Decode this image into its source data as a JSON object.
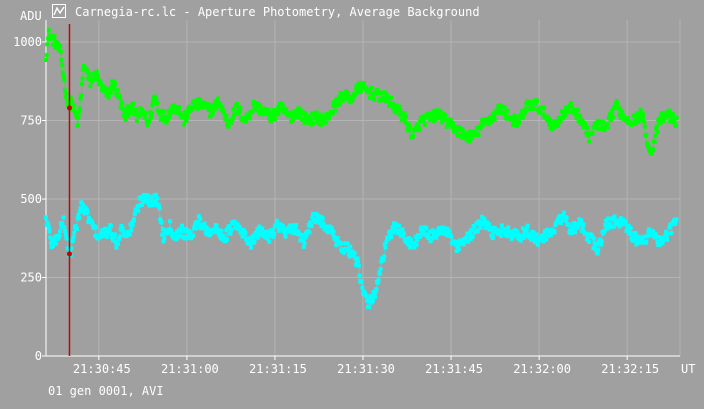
{
  "window": {
    "title": "Carnegia-rc.lc - Aperture Photometry, Average Background",
    "footer": "01 gen 0001, AVI"
  },
  "colors": {
    "background": "#a0a0a0",
    "grid": "#b4b4b4",
    "axis": "#ffffff",
    "series_green": "#00ff00",
    "series_cyan": "#00ffff",
    "cursor": "#cc0000"
  },
  "icons": {
    "window_icon": "chart-app-icon"
  },
  "chart_data": {
    "type": "scatter",
    "ylabel": "ADU",
    "xlabel": "UT",
    "ylim": [
      0,
      1000
    ],
    "yticks": [
      0,
      250,
      500,
      750,
      1000
    ],
    "ytick_labels": [
      "0",
      "250",
      "500",
      "750",
      "1000"
    ],
    "xlim_seconds": [
      37836,
      37944
    ],
    "xticks_seconds": [
      37845,
      37860,
      37875,
      37890,
      37905,
      37920,
      37935
    ],
    "xtick_labels": [
      "21:30:45",
      "21:31:00",
      "21:31:15",
      "21:31:30",
      "21:31:45",
      "21:32:00",
      "21:32:15"
    ],
    "cursor_x_seconds": 37840,
    "cursor_values": [
      790,
      325
    ],
    "series": [
      {
        "color": "#00ff00",
        "anchors": [
          [
            37836.0,
            960
          ],
          [
            37836.5,
            1025
          ],
          [
            37837.5,
            1000
          ],
          [
            37838.5,
            965
          ],
          [
            37839.5,
            820
          ],
          [
            37840.5,
            800
          ],
          [
            37841.5,
            740
          ],
          [
            37842.5,
            930
          ],
          [
            37843.5,
            870
          ],
          [
            37844.5,
            900
          ],
          [
            37845.5,
            850
          ],
          [
            37846.5,
            830
          ],
          [
            37847.5,
            870
          ],
          [
            37848.5,
            820
          ],
          [
            37849.5,
            760
          ],
          [
            37850.5,
            800
          ],
          [
            37851.5,
            760
          ],
          [
            37852.5,
            780
          ],
          [
            37853.5,
            740
          ],
          [
            37854.5,
            830
          ],
          [
            37855.5,
            770
          ],
          [
            37856.5,
            760
          ],
          [
            37857.5,
            790
          ],
          [
            37858.5,
            790
          ],
          [
            37859.5,
            750
          ],
          [
            37861.0,
            800
          ],
          [
            37862.5,
            800
          ],
          [
            37864.0,
            780
          ],
          [
            37865.5,
            810
          ],
          [
            37867.0,
            740
          ],
          [
            37868.5,
            790
          ],
          [
            37870.0,
            750
          ],
          [
            37871.5,
            800
          ],
          [
            37873.0,
            780
          ],
          [
            37874.5,
            760
          ],
          [
            37876.0,
            790
          ],
          [
            37877.5,
            760
          ],
          [
            37879.0,
            780
          ],
          [
            37880.5,
            750
          ],
          [
            37882.0,
            760
          ],
          [
            37883.5,
            750
          ],
          [
            37885.0,
            790
          ],
          [
            37886.5,
            830
          ],
          [
            37888.0,
            820
          ],
          [
            37889.5,
            860
          ],
          [
            37891.0,
            840
          ],
          [
            37892.5,
            830
          ],
          [
            37894.0,
            820
          ],
          [
            37895.5,
            790
          ],
          [
            37897.0,
            760
          ],
          [
            37898.5,
            700
          ],
          [
            37900.0,
            750
          ],
          [
            37901.5,
            760
          ],
          [
            37903.0,
            770
          ],
          [
            37904.5,
            740
          ],
          [
            37906.0,
            720
          ],
          [
            37907.5,
            700
          ],
          [
            37909.0,
            700
          ],
          [
            37910.5,
            740
          ],
          [
            37912.0,
            760
          ],
          [
            37913.5,
            790
          ],
          [
            37915.0,
            760
          ],
          [
            37916.5,
            740
          ],
          [
            37918.0,
            800
          ],
          [
            37919.5,
            800
          ],
          [
            37921.0,
            770
          ],
          [
            37922.5,
            730
          ],
          [
            37924.0,
            770
          ],
          [
            37925.5,
            790
          ],
          [
            37927.0,
            760
          ],
          [
            37928.5,
            700
          ],
          [
            37930.0,
            740
          ],
          [
            37931.5,
            720
          ],
          [
            37933.0,
            800
          ],
          [
            37934.5,
            760
          ],
          [
            37936.0,
            750
          ],
          [
            37937.5,
            770
          ],
          [
            37939.0,
            640
          ],
          [
            37940.5,
            750
          ],
          [
            37942.0,
            770
          ],
          [
            37943.5,
            740
          ]
        ]
      },
      {
        "color": "#00ffff",
        "anchors": [
          [
            37836.0,
            440
          ],
          [
            37837.0,
            355
          ],
          [
            37838.0,
            380
          ],
          [
            37839.0,
            430
          ],
          [
            37840.0,
            320
          ],
          [
            37841.0,
            400
          ],
          [
            37842.0,
            480
          ],
          [
            37843.0,
            450
          ],
          [
            37844.0,
            410
          ],
          [
            37845.0,
            380
          ],
          [
            37846.0,
            390
          ],
          [
            37847.0,
            400
          ],
          [
            37848.0,
            360
          ],
          [
            37849.0,
            410
          ],
          [
            37850.0,
            380
          ],
          [
            37851.0,
            440
          ],
          [
            37852.0,
            490
          ],
          [
            37853.0,
            510
          ],
          [
            37854.0,
            490
          ],
          [
            37855.0,
            500
          ],
          [
            37856.0,
            380
          ],
          [
            37857.0,
            420
          ],
          [
            37858.0,
            380
          ],
          [
            37859.0,
            400
          ],
          [
            37860.5,
            380
          ],
          [
            37862.0,
            430
          ],
          [
            37863.5,
            400
          ],
          [
            37865.0,
            400
          ],
          [
            37866.5,
            380
          ],
          [
            37868.0,
            420
          ],
          [
            37869.5,
            390
          ],
          [
            37871.0,
            360
          ],
          [
            37872.5,
            400
          ],
          [
            37874.0,
            380
          ],
          [
            37875.5,
            420
          ],
          [
            37877.0,
            390
          ],
          [
            37878.5,
            410
          ],
          [
            37880.0,
            360
          ],
          [
            37881.5,
            440
          ],
          [
            37883.0,
            430
          ],
          [
            37884.5,
            400
          ],
          [
            37886.0,
            350
          ],
          [
            37887.5,
            340
          ],
          [
            37889.0,
            300
          ],
          [
            37890.0,
            200
          ],
          [
            37891.0,
            165
          ],
          [
            37892.0,
            200
          ],
          [
            37893.0,
            280
          ],
          [
            37894.0,
            360
          ],
          [
            37895.5,
            420
          ],
          [
            37897.0,
            380
          ],
          [
            37898.5,
            350
          ],
          [
            37900.0,
            400
          ],
          [
            37901.5,
            380
          ],
          [
            37903.0,
            400
          ],
          [
            37904.5,
            390
          ],
          [
            37906.0,
            340
          ],
          [
            37907.5,
            370
          ],
          [
            37909.0,
            400
          ],
          [
            37910.5,
            430
          ],
          [
            37912.0,
            390
          ],
          [
            37913.5,
            400
          ],
          [
            37915.0,
            390
          ],
          [
            37916.5,
            380
          ],
          [
            37918.0,
            400
          ],
          [
            37919.5,
            370
          ],
          [
            37921.0,
            380
          ],
          [
            37922.5,
            400
          ],
          [
            37924.0,
            450
          ],
          [
            37925.5,
            400
          ],
          [
            37927.0,
            420
          ],
          [
            37928.5,
            380
          ],
          [
            37930.0,
            340
          ],
          [
            37931.5,
            420
          ],
          [
            37933.0,
            430
          ],
          [
            37934.5,
            420
          ],
          [
            37936.0,
            380
          ],
          [
            37937.5,
            360
          ],
          [
            37939.0,
            400
          ],
          [
            37940.5,
            360
          ],
          [
            37942.0,
            390
          ],
          [
            37943.5,
            440
          ]
        ]
      }
    ]
  }
}
